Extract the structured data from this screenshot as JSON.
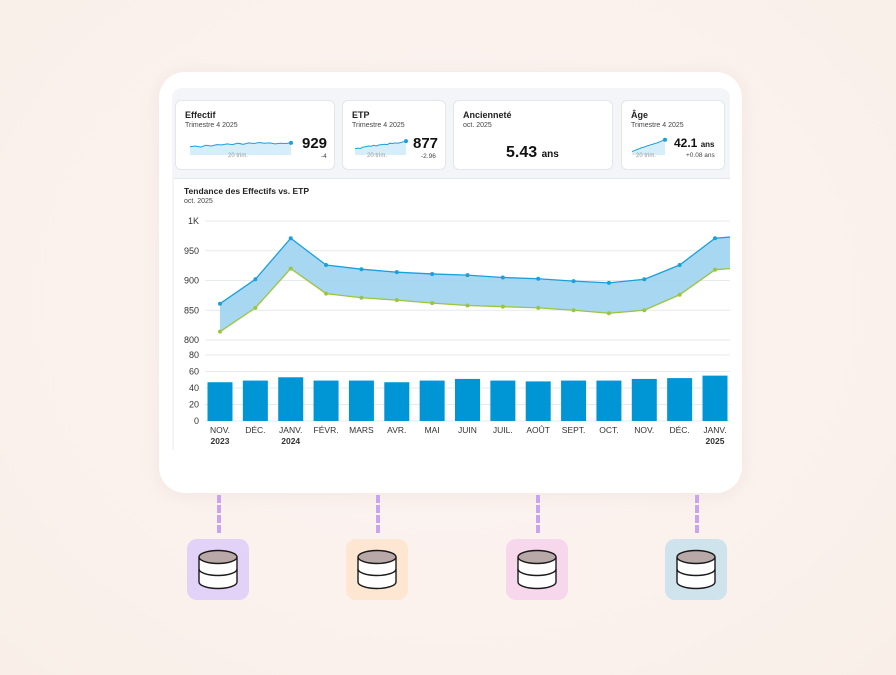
{
  "kpis": [
    {
      "title": "Effectif",
      "subtitle": "Trimestre 4 2025",
      "value": "929",
      "unit": "",
      "delta": "-4",
      "spark_label": "20 trim.",
      "spark": [
        0.45,
        0.5,
        0.42,
        0.55,
        0.5,
        0.6,
        0.58,
        0.65,
        0.6,
        0.7,
        0.62,
        0.72,
        0.68,
        0.75,
        0.7,
        0.72,
        0.65,
        0.7,
        0.68,
        0.72
      ]
    },
    {
      "title": "ETP",
      "subtitle": "Trimestre 4 2025",
      "value": "877",
      "unit": "",
      "delta": "-2.96",
      "spark_label": "20 trim.",
      "spark": [
        0.3,
        0.35,
        0.32,
        0.42,
        0.45,
        0.5,
        0.48,
        0.55,
        0.5,
        0.58,
        0.6,
        0.62,
        0.6,
        0.7,
        0.68,
        0.72,
        0.7,
        0.75,
        0.8,
        0.85
      ]
    },
    {
      "title": "Ancienneté",
      "subtitle": "oct. 2025",
      "value": "5.43",
      "unit": "ans",
      "delta": "",
      "spark_label": "",
      "spark": []
    },
    {
      "title": "Âge",
      "subtitle": "Trimestre 4 2025",
      "value": "42.1",
      "unit": "ans",
      "delta": "+0.08 ans",
      "spark_label": "20 trim.",
      "spark": [
        0.1,
        0.15,
        0.2,
        0.25,
        0.3,
        0.35,
        0.4,
        0.42,
        0.48,
        0.52,
        0.55,
        0.6,
        0.62,
        0.68,
        0.7,
        0.75,
        0.8,
        0.85,
        0.9,
        0.95
      ]
    }
  ],
  "chart_data": {
    "type": "area",
    "title": "Tendance des Effectifs vs. ETP",
    "subtitle": "oct. 2025",
    "categories": [
      [
        "NOV.",
        "2023"
      ],
      [
        "DÉC.",
        ""
      ],
      [
        "JANV.",
        "2024"
      ],
      [
        "FÉVR.",
        ""
      ],
      [
        "MARS",
        ""
      ],
      [
        "AVR.",
        ""
      ],
      [
        "MAI",
        ""
      ],
      [
        "JUIN",
        ""
      ],
      [
        "JUIL.",
        ""
      ],
      [
        "AOÛT",
        ""
      ],
      [
        "SEPT.",
        ""
      ],
      [
        "OCT.",
        ""
      ],
      [
        "NOV.",
        ""
      ],
      [
        "DÉC.",
        ""
      ],
      [
        "JANV.",
        "2025"
      ]
    ],
    "series": [
      {
        "values": [
          861,
          902,
          971,
          926,
          919,
          914,
          911,
          909,
          905,
          903,
          899,
          896,
          902,
          926,
          971
        ],
        "color": "#1aa0dc"
      },
      {
        "values": [
          814,
          854,
          920,
          878,
          871,
          867,
          862,
          858,
          856,
          854,
          850,
          845,
          850,
          876,
          918
        ],
        "color": "#9bc53d"
      }
    ],
    "band_color": "#9dd3ef",
    "ylim_top": [
      800,
      1000
    ],
    "yticks_top": [
      "800",
      "850",
      "900",
      "950",
      "1K"
    ],
    "bars": {
      "values": [
        47,
        49,
        53,
        49,
        49,
        47,
        49,
        51,
        49,
        48,
        49,
        49,
        51,
        52,
        55
      ],
      "color": "#0096d6"
    },
    "ylim_bottom": [
      0,
      80
    ],
    "yticks_bottom": [
      "0",
      "20",
      "40",
      "60",
      "80"
    ]
  },
  "databases": [
    {
      "icon": "database-icon",
      "bg": "#e3d2f7"
    },
    {
      "icon": "database-icon",
      "bg": "#fde6d2"
    },
    {
      "icon": "database-icon",
      "bg": "#f6d7eb"
    },
    {
      "icon": "database-icon",
      "bg": "#cfe3ec"
    }
  ]
}
